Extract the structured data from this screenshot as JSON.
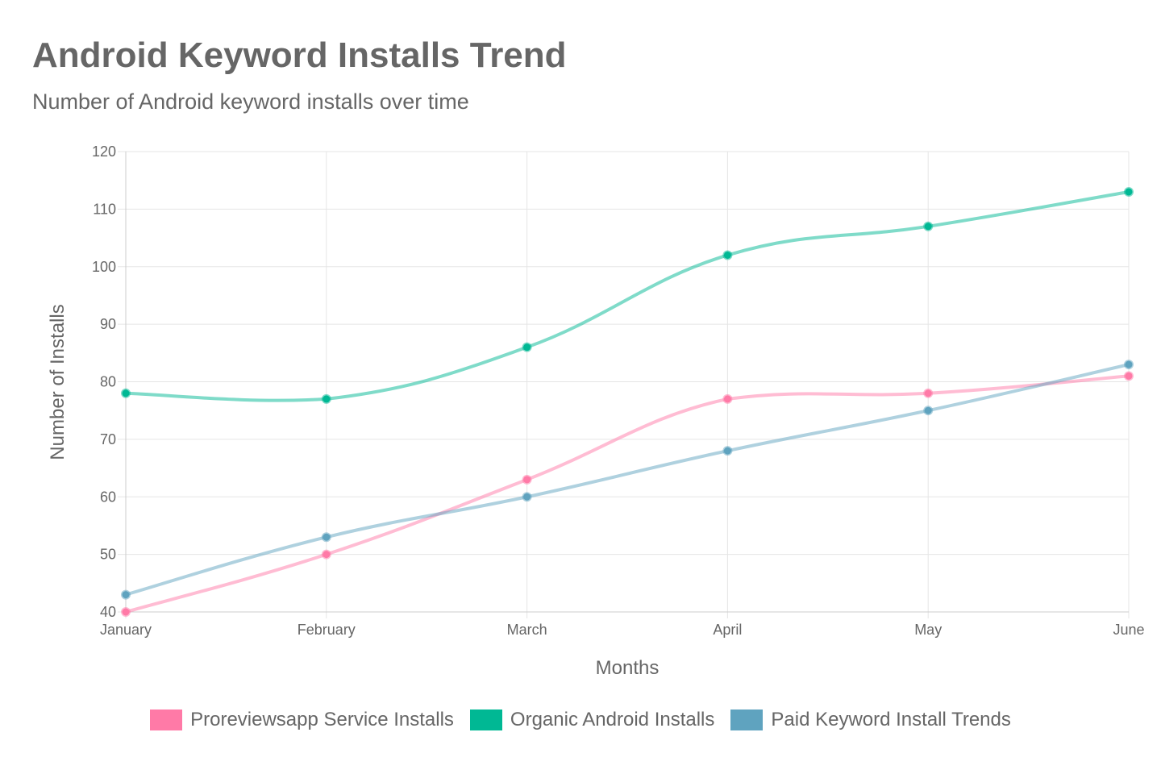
{
  "chart_data": {
    "type": "line",
    "title": "Android Keyword Installs Trend",
    "subtitle": "Number of Android keyword installs over time",
    "xlabel": "Months",
    "ylabel": "Number of Installs",
    "categories": [
      "January",
      "February",
      "March",
      "April",
      "May",
      "June"
    ],
    "ylim": [
      40,
      120
    ],
    "yticks": [
      40,
      50,
      60,
      70,
      80,
      90,
      100,
      110,
      120
    ],
    "grid": true,
    "legend_position": "bottom",
    "series": [
      {
        "name": "Proreviewsapp Service Installs",
        "values": [
          40,
          50,
          63,
          77,
          78,
          81
        ],
        "color": "#ff7aa7"
      },
      {
        "name": "Organic Android Installs",
        "values": [
          78,
          77,
          86,
          102,
          107,
          113
        ],
        "color": "#00b894"
      },
      {
        "name": "Paid Keyword Install Trends",
        "values": [
          43,
          53,
          60,
          68,
          75,
          83
        ],
        "color": "#5fa3bf"
      }
    ]
  }
}
